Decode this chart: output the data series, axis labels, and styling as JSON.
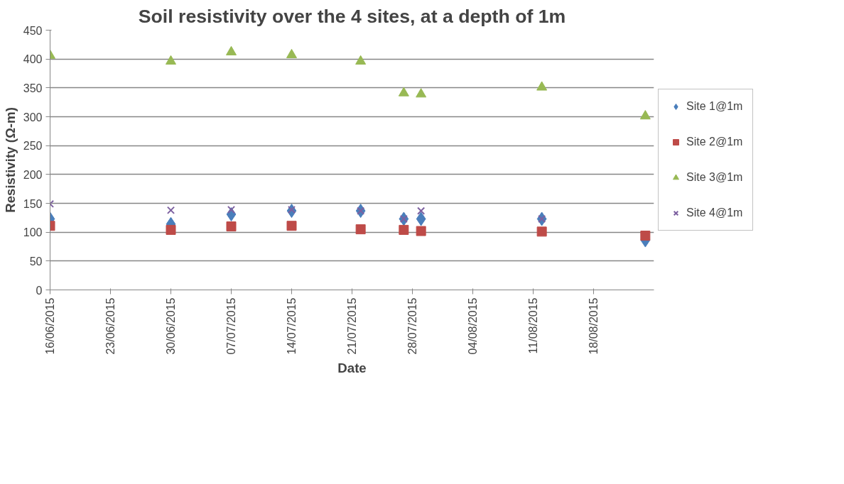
{
  "chart_data": {
    "type": "scatter",
    "title": "Soil resistivity over the 4 sites, at a depth of 1m",
    "xlabel": "Date",
    "ylabel": "Resistivity (Ω-m)",
    "x": [
      "2015-06-16",
      "2015-06-30",
      "2015-07-07",
      "2015-07-14",
      "2015-07-22",
      "2015-07-27",
      "2015-07-29",
      "2015-08-12",
      "2015-08-24"
    ],
    "series": [
      {
        "name": "Site 1@1m",
        "color": "#4a7ebb",
        "marker": "diamond",
        "values": [
          123,
          114,
          131,
          137,
          137,
          123,
          123,
          123,
          86
        ]
      },
      {
        "name": "Site 2@1m",
        "color": "#be4b48",
        "marker": "square",
        "values": [
          111,
          104,
          110,
          111,
          105,
          104,
          102,
          101,
          94
        ]
      },
      {
        "name": "Site 3@1m",
        "color": "#98b954",
        "marker": "triangle",
        "values": [
          406,
          396,
          412,
          407,
          396,
          341,
          339,
          351,
          301
        ]
      },
      {
        "name": "Site 4@1m",
        "color": "#7d60a0",
        "marker": "cross",
        "values": [
          149,
          138,
          139,
          139,
          137,
          123,
          137,
          123,
          null
        ]
      }
    ],
    "xlim": [
      "2015-06-16",
      "2015-08-25"
    ],
    "xticks": [
      {
        "value": "2015-06-16",
        "label": "16/06/2015"
      },
      {
        "value": "2015-06-23",
        "label": "23/06/2015"
      },
      {
        "value": "2015-06-30",
        "label": "30/06/2015"
      },
      {
        "value": "2015-07-07",
        "label": "07/07/2015"
      },
      {
        "value": "2015-07-14",
        "label": "14/07/2015"
      },
      {
        "value": "2015-07-21",
        "label": "21/07/2015"
      },
      {
        "value": "2015-07-28",
        "label": "28/07/2015"
      },
      {
        "value": "2015-08-04",
        "label": "04/08/2015"
      },
      {
        "value": "2015-08-11",
        "label": "11/08/2015"
      },
      {
        "value": "2015-08-18",
        "label": "18/08/2015"
      }
    ],
    "ylim": [
      0,
      450
    ],
    "yticks": [
      0,
      50,
      100,
      150,
      200,
      250,
      300,
      350,
      400,
      450
    ],
    "grid": "y",
    "legend": "right"
  }
}
